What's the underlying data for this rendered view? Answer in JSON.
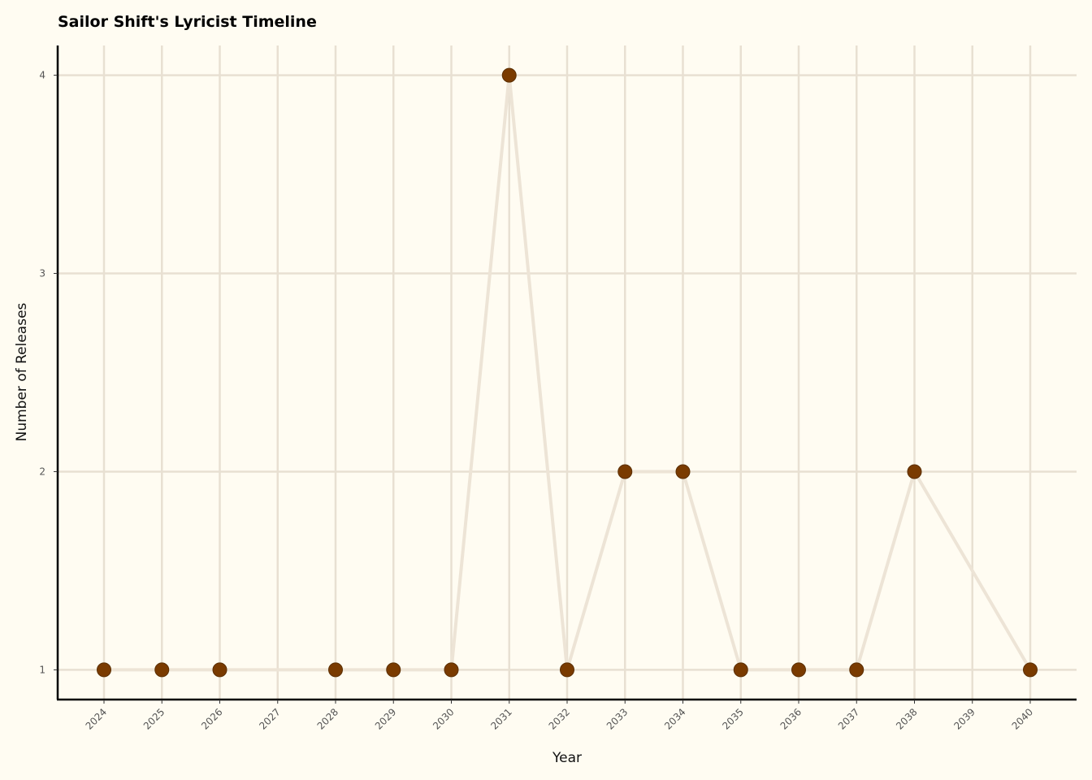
{
  "chart_data": {
    "type": "line",
    "title": "Sailor Shift's Lyricist Timeline",
    "xlabel": "Year",
    "ylabel": "Number of Releases",
    "x_ticks": [
      "2024",
      "2025",
      "2026",
      "2027",
      "2028",
      "2029",
      "2030",
      "2031",
      "2032",
      "2033",
      "2034",
      "2035",
      "2036",
      "2037",
      "2038",
      "2039",
      "2040"
    ],
    "y_ticks": [
      "1",
      "2",
      "3",
      "4"
    ],
    "xlim": [
      2023.2,
      2040.8
    ],
    "ylim": [
      0.85,
      4.15
    ],
    "grid": true,
    "series": [
      {
        "x": [
          2024,
          2025,
          2026,
          2028,
          2029,
          2030,
          2031,
          2032,
          2033,
          2034,
          2035,
          2036,
          2037,
          2038,
          2040
        ],
        "y": [
          1,
          1,
          1,
          1,
          1,
          1,
          4,
          1,
          2,
          2,
          1,
          1,
          1,
          2,
          1
        ],
        "line_color": "#ede4d6",
        "marker_color": "#7a3b00"
      }
    ]
  }
}
